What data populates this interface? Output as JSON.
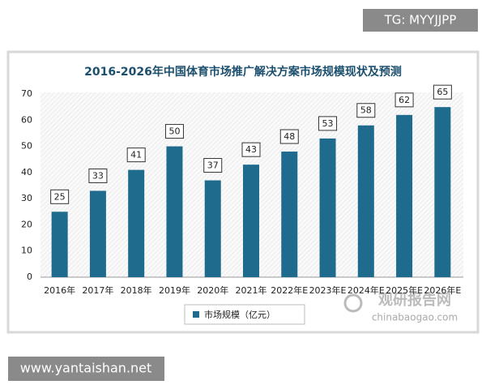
{
  "chart_data": {
    "type": "bar",
    "title": "2016-2026年中国体育市场推广解决方案市场规模现状及预测",
    "categories": [
      "2016年",
      "2017年",
      "2018年",
      "2019年",
      "2020年",
      "2021年",
      "2022年E",
      "2023年E",
      "2024年E",
      "2025年E",
      "2026年E"
    ],
    "series": [
      {
        "name": "市场规模（亿元）",
        "color": "#1f6b8e",
        "values": [
          25,
          33,
          41,
          50,
          37,
          43,
          48,
          53,
          58,
          62,
          65
        ]
      }
    ],
    "ylim": [
      0,
      70
    ],
    "yticks": [
      0,
      10,
      20,
      30,
      40,
      50,
      60,
      70
    ],
    "grid": false,
    "legend": "bottom"
  },
  "watermarks": {
    "top_right": "TG: MYYJJPP",
    "bottom_left": "www.yantaishan.net",
    "brand": "观研报告网",
    "brand_url": "chinabaogao.com"
  }
}
